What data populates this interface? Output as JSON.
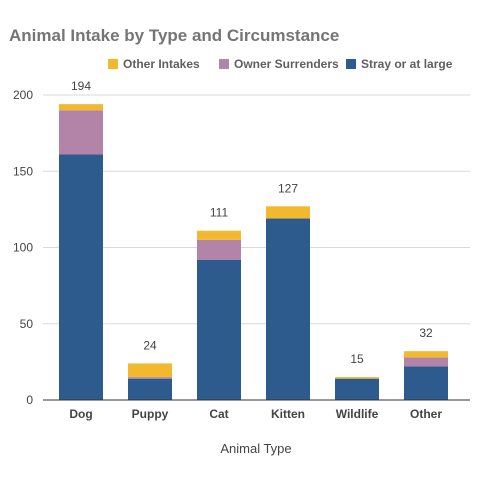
{
  "chart_data": {
    "type": "bar",
    "stacked": true,
    "title": "Animal Intake by Type and Circumstance",
    "xlabel": "Animal Type",
    "ylabel": "",
    "ylim": [
      0,
      200
    ],
    "yticks": [
      0,
      50,
      100,
      150,
      200
    ],
    "grid": true,
    "legend_position": "top-right",
    "categories": [
      "Dog",
      "Puppy",
      "Cat",
      "Kitten",
      "Wildlife",
      "Other"
    ],
    "series": [
      {
        "name": "Stray or at large",
        "color": "#2e5b8d",
        "values": [
          161,
          14,
          92,
          119,
          14,
          22
        ]
      },
      {
        "name": "Owner Surrenders",
        "color": "#b384a8",
        "values": [
          29,
          1,
          13,
          0,
          0,
          6
        ]
      },
      {
        "name": "Other Intakes",
        "color": "#f2b82e",
        "values": [
          4,
          9,
          6,
          8,
          1,
          4
        ]
      }
    ],
    "legend_order": [
      "Other Intakes",
      "Owner Surrenders",
      "Stray or at large"
    ],
    "totals": [
      "194",
      "24",
      "111",
      "127",
      "15",
      "32"
    ]
  }
}
